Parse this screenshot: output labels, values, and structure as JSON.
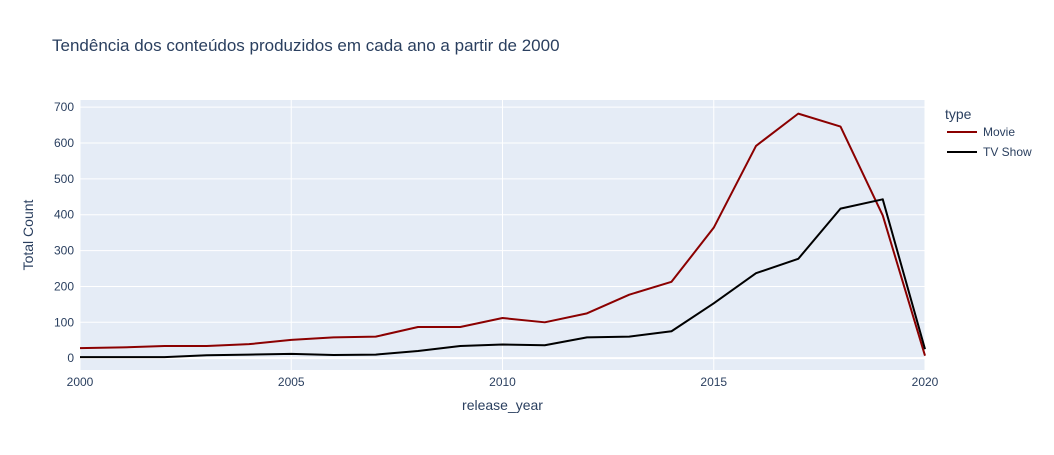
{
  "chart_data": {
    "type": "line",
    "title": "Tendência dos conteúdos produzidos em cada ano a partir de 2000",
    "xlabel": "release_year",
    "ylabel": "Total Count",
    "xlim": [
      2000,
      2020
    ],
    "ylim": [
      -33,
      720
    ],
    "x_ticks": [
      2000,
      2005,
      2010,
      2015,
      2020
    ],
    "y_ticks": [
      0,
      100,
      200,
      300,
      400,
      500,
      600,
      700
    ],
    "grid": true,
    "legend": {
      "title": "type",
      "position": "right"
    },
    "x": [
      2000,
      2001,
      2002,
      2003,
      2004,
      2005,
      2006,
      2007,
      2008,
      2009,
      2010,
      2011,
      2012,
      2013,
      2014,
      2015,
      2016,
      2017,
      2018,
      2019,
      2020
    ],
    "series": [
      {
        "name": "Movie",
        "color": "#8b0000",
        "values": [
          28,
          30,
          34,
          34,
          39,
          51,
          58,
          60,
          87,
          87,
          112,
          100,
          125,
          177,
          213,
          364,
          592,
          682,
          646,
          398,
          7
        ]
      },
      {
        "name": "TV Show",
        "color": "#000000",
        "values": [
          3,
          3,
          3,
          8,
          10,
          12,
          9,
          10,
          20,
          34,
          38,
          36,
          58,
          60,
          75,
          153,
          237,
          277,
          417,
          443,
          25
        ]
      }
    ]
  }
}
